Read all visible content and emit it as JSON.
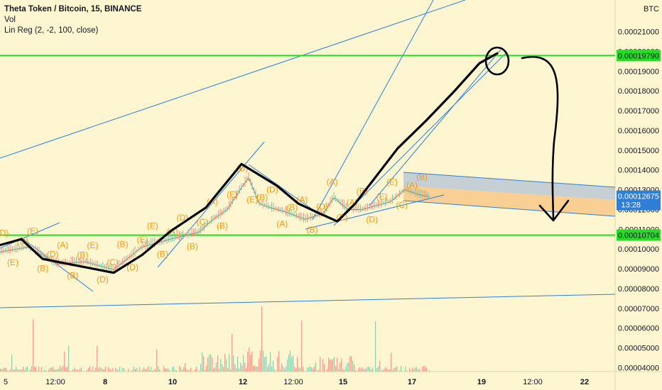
{
  "legend": {
    "symbol": "Theta Token / Bitcoin, 15, BINANCE",
    "volume": "Vol",
    "indicator": "Lin Reg (2, -2, 100, close)"
  },
  "colors": {
    "background": "#fdf6d0",
    "horizontal_line": "#22dd22",
    "trend_line": "#2f7fd6",
    "wave_label": "#f59a0f",
    "upper_band": "#b7c6d4",
    "lower_band": "#f9c684",
    "volume_up": "#7fc2a8",
    "volume_down": "#e8917f",
    "candle": "#5b8f7a",
    "drawing": "#000000",
    "price_badge": "#2f7fd6"
  },
  "chart_data": {
    "type": "line",
    "currency": "BTC",
    "ylim": [
      3.8e-05,
      0.000226
    ],
    "y_ticks": [
      "0.00004000",
      "0.00005000",
      "0.00006000",
      "0.00007000",
      "0.00008000",
      "0.00009000",
      "0.00010000",
      "0.00011000",
      "0.00012000",
      "0.00013000",
      "0.00014000",
      "0.00015000",
      "0.00016000",
      "0.00017000",
      "0.00018000",
      "0.00019000",
      "0.00020000",
      "0.00021000"
    ],
    "x_ticks": [
      "5",
      "12:00",
      "8",
      "10",
      "12",
      "12:00",
      "15",
      "17",
      "19",
      "12:00",
      "22"
    ],
    "levels": {
      "resistance": "0.00019790",
      "support": "0.00010704",
      "last_price": "0.00012675",
      "countdown": "13:28"
    },
    "price_path": [
      [
        0,
        9.85e-05
      ],
      [
        40,
        0.000101
      ],
      [
        80,
        9.25e-05
      ],
      [
        120,
        9.35e-05
      ],
      [
        160,
        8.95e-05
      ],
      [
        200,
        0.000101
      ],
      [
        240,
        0.000105
      ],
      [
        280,
        0.0001085
      ],
      [
        300,
        0.000115
      ],
      [
        320,
        0.00012
      ],
      [
        340,
        0.000131
      ],
      [
        350,
        0.000136
      ],
      [
        365,
        0.000123
      ],
      [
        380,
        0.000121
      ],
      [
        400,
        0.000119
      ],
      [
        430,
        0.000115
      ],
      [
        455,
        0.000118
      ],
      [
        470,
        0.000126
      ],
      [
        490,
        0.00012
      ],
      [
        510,
        0.00012
      ],
      [
        530,
        0.000122
      ],
      [
        550,
        0.000124
      ],
      [
        570,
        0.00013
      ],
      [
        590,
        0.0001275
      ],
      [
        605,
        0.0001265
      ]
    ],
    "projection_path": [
      [
        0,
        0.000102
      ],
      [
        30,
        0.000105
      ],
      [
        60,
        9.5e-05
      ],
      [
        110,
        9.15e-05
      ],
      [
        160,
        8.8e-05
      ],
      [
        200,
        9.7e-05
      ],
      [
        240,
        0.000109
      ],
      [
        290,
        0.000121
      ],
      [
        340,
        0.000143
      ],
      [
        390,
        0.000132
      ],
      [
        420,
        0.000123
      ],
      [
        450,
        0.000118
      ],
      [
        475,
        0.000114
      ],
      [
        500,
        0.000123
      ],
      [
        530,
        0.000137
      ],
      [
        560,
        0.000151
      ],
      [
        600,
        0.000165
      ],
      [
        640,
        0.00018
      ],
      [
        675,
        0.000194
      ],
      [
        700,
        0.000199
      ]
    ],
    "wave_labels": [
      "(D)",
      "(E)",
      "(D)",
      "(E)",
      "(B)",
      "(D)",
      "(A)",
      "(B)",
      "(B)",
      "(E)",
      "(D)",
      "(C)",
      "(B)",
      "(D)",
      "(E)",
      "(E)",
      "(B)",
      "(A)",
      "(D)",
      "(B)",
      "(C)",
      "(A)",
      "(B)",
      "(E)",
      "(D)",
      "(E)",
      "(B)",
      "(D)",
      "(A)",
      "(B)",
      "(A)",
      "(B)",
      "(D)",
      "(A)",
      "(E)",
      "(A)",
      "(B)",
      "(D)",
      "(E)",
      "(E)",
      "(C)",
      "(A)",
      "(B)"
    ],
    "grid": false,
    "legend_position": "top-left"
  }
}
